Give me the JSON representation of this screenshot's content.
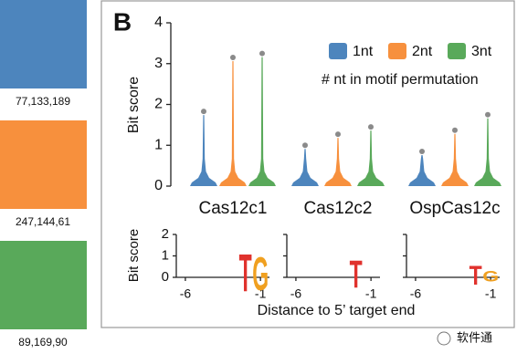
{
  "swatches": [
    {
      "color": "#4d85bd",
      "label": "77,133,189"
    },
    {
      "color": "#f7903d",
      "label": "247,144,61"
    },
    {
      "color": "#59a95a",
      "label": "89,169,90"
    }
  ],
  "panel_label": "B",
  "watermark": "软件通",
  "chart_data": [
    {
      "type": "violin",
      "ylabel": "Bit score",
      "categories": [
        "Cas12c1",
        "Cas12c2",
        "OspCas12c"
      ],
      "series": [
        {
          "name": "1nt",
          "color": "#4d85bd",
          "values": [
            1.83,
            1.0,
            0.85
          ]
        },
        {
          "name": "2nt",
          "color": "#f7903d",
          "values": [
            3.15,
            1.27,
            1.37
          ]
        },
        {
          "name": "3nt",
          "color": "#59a95a",
          "values": [
            3.25,
            1.45,
            1.75
          ]
        }
      ],
      "legend_title": "# nt in motif permutation",
      "ylim": [
        0,
        4
      ],
      "yticks": [
        0,
        1,
        2,
        3,
        4
      ]
    },
    {
      "type": "logo",
      "ylabel": "Bit score",
      "xlabel": "Distance to 5’ target end",
      "xlim": [
        -6.3,
        -0.4
      ],
      "xticks": [
        -6,
        -1
      ],
      "ylim": [
        0,
        2
      ],
      "yticks": [
        0,
        1,
        2
      ],
      "panels": [
        {
          "letters": [
            {
              "letter": "T",
              "position": -2,
              "value": 1.8,
              "color": "#e0322d"
            },
            {
              "letter": "G",
              "position": -1,
              "value": 1.6,
              "color": "#f0a020"
            }
          ]
        },
        {
          "letters": [
            {
              "letter": "T",
              "position": -2,
              "value": 1.3,
              "color": "#e0322d"
            }
          ]
        },
        {
          "letters": [
            {
              "letter": "T",
              "position": -2,
              "value": 0.9,
              "color": "#e0322d"
            },
            {
              "letter": "G",
              "position": -1,
              "value": 0.5,
              "color": "#f0a020"
            }
          ]
        }
      ]
    }
  ]
}
